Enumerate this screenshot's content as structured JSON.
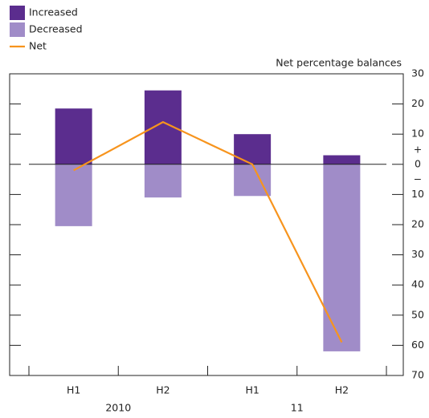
{
  "chart_data": {
    "type": "bar",
    "axis_title": "Net percentage balances",
    "categories": [
      "H1",
      "H2",
      "H1",
      "H2"
    ],
    "years": [
      {
        "label": "2010",
        "span": [
          0,
          1
        ]
      },
      {
        "label": "11",
        "span": [
          2,
          3
        ]
      }
    ],
    "series": [
      {
        "name": "Increased",
        "color": "#5b2d8e",
        "type": "bar",
        "values": [
          18.5,
          24.5,
          10,
          3
        ]
      },
      {
        "name": "Decreased",
        "color": "#a08cc8",
        "type": "bar",
        "values": [
          -20.5,
          -11,
          -10.5,
          -62
        ]
      },
      {
        "name": "Net",
        "color": "#f7941d",
        "type": "line",
        "values": [
          -2,
          14,
          0,
          -59
        ]
      }
    ],
    "ylim": [
      -70,
      30
    ],
    "yticks": [
      30,
      20,
      10,
      0,
      {
        "value": -10,
        "label": "10"
      },
      {
        "value": -20,
        "label": "20"
      },
      {
        "value": -30,
        "label": "30"
      },
      {
        "value": -40,
        "label": "40"
      },
      {
        "value": -50,
        "label": "50"
      },
      {
        "value": -60,
        "label": "60"
      },
      {
        "value": -70,
        "label": "70"
      }
    ],
    "sign_labels": [
      "+",
      "−"
    ]
  }
}
